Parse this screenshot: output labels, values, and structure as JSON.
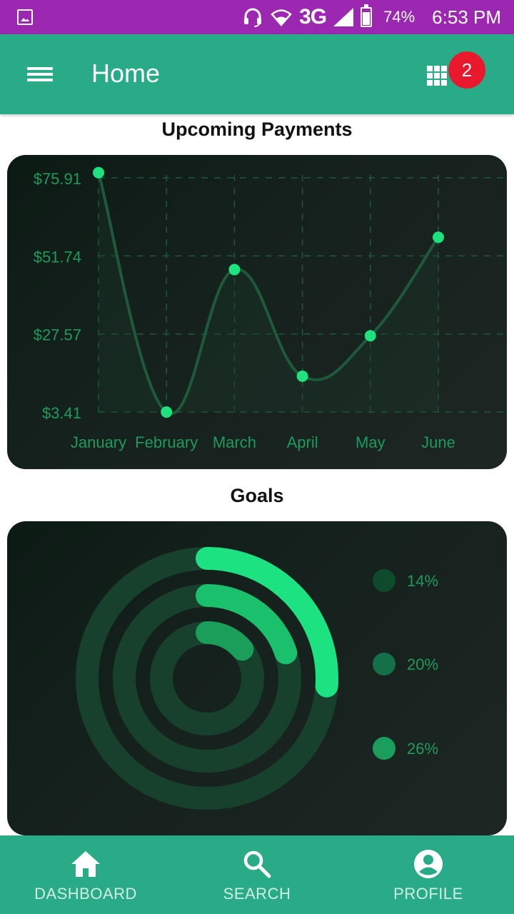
{
  "status_bar": {
    "network": "3G",
    "battery_percent": "74%",
    "battery_level": 0.74,
    "time": "6:53 PM",
    "icons": [
      "image-icon",
      "headset-icon",
      "wifi-icon",
      "signal-icon",
      "battery-icon"
    ],
    "color": "#9c27b0"
  },
  "app_bar": {
    "title": "Home",
    "notification_count": "2",
    "color": "#2aab87",
    "badge_color": "#e8192c"
  },
  "upcoming_payments": {
    "title": "Upcoming Payments"
  },
  "goals": {
    "title": "Goals"
  },
  "chart_data": [
    {
      "type": "line",
      "title": "Upcoming Payments",
      "categories": [
        "January",
        "February",
        "March",
        "April",
        "May",
        "June"
      ],
      "values": [
        77.5,
        3.4,
        47.5,
        14.5,
        27.0,
        57.5
      ],
      "y_ticks": [
        "$75.91",
        "$51.74",
        "$27.57",
        "$3.41"
      ],
      "y_tick_values": [
        75.91,
        51.74,
        27.57,
        3.41
      ],
      "ylim": [
        3.41,
        75.91
      ],
      "grid": true,
      "smooth": true,
      "line_color": "#1e5a3a",
      "point_color": "#1de27d",
      "label_color": "#1f9a5c"
    },
    {
      "type": "radial-bar",
      "title": "Goals",
      "series": [
        {
          "label": "14%",
          "value": 14,
          "color": "#0e4a2c"
        },
        {
          "label": "20%",
          "value": 20,
          "color": "#137048"
        },
        {
          "label": "26%",
          "value": 26,
          "color": "#1b9e5c"
        }
      ],
      "ring_values": [
        26,
        20,
        14
      ],
      "ring_colors": [
        "#1de282",
        "#1ac06b",
        "#1a9e5a"
      ],
      "track_color": "#17412d",
      "label_color": "#1f9a5c"
    }
  ],
  "bottom_nav": {
    "items": [
      {
        "label": "DASHBOARD",
        "icon": "home-icon"
      },
      {
        "label": "SEARCH",
        "icon": "search-icon"
      },
      {
        "label": "PROFILE",
        "icon": "account-circle-icon"
      }
    ]
  }
}
